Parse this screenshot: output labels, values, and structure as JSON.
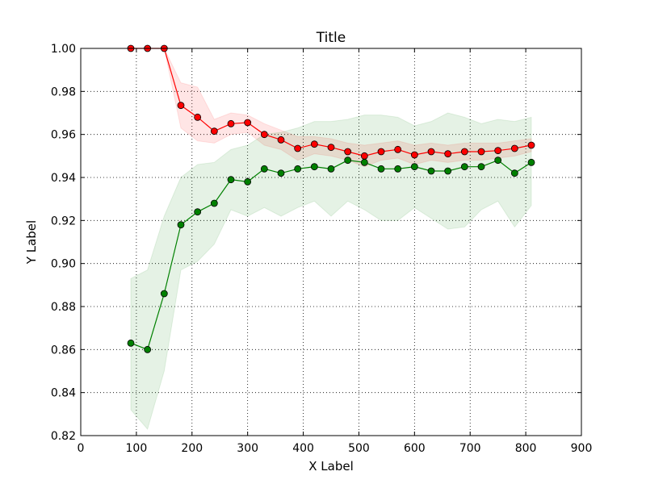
{
  "chart_data": {
    "type": "line",
    "title": "Title",
    "xlabel": "X Label",
    "ylabel": "Y Label",
    "xlim": [
      0,
      900
    ],
    "ylim": [
      0.82,
      1.0
    ],
    "xticks": [
      "0",
      "100",
      "200",
      "300",
      "400",
      "500",
      "600",
      "700",
      "800",
      "900"
    ],
    "yticks": [
      "0.82",
      "0.84",
      "0.86",
      "0.88",
      "0.90",
      "0.92",
      "0.94",
      "0.96",
      "0.98",
      "1.00"
    ],
    "grid": true,
    "x": [
      90,
      120,
      150,
      180,
      210,
      240,
      270,
      300,
      330,
      360,
      390,
      420,
      450,
      480,
      510,
      540,
      570,
      600,
      630,
      660,
      690,
      720,
      750,
      780,
      810
    ],
    "series": [
      {
        "color": "#ff0000",
        "band_color": "#ff0000",
        "values": [
          1.0,
          1.0,
          1.0,
          0.9735,
          0.968,
          0.9615,
          0.965,
          0.9655,
          0.96,
          0.9575,
          0.9535,
          0.9555,
          0.954,
          0.952,
          0.95,
          0.952,
          0.953,
          0.9505,
          0.952,
          0.951,
          0.952,
          0.952,
          0.9525,
          0.9535,
          0.955
        ],
        "upper": [
          1.0,
          1.0,
          1.0,
          0.984,
          0.982,
          0.967,
          0.97,
          0.969,
          0.965,
          0.962,
          0.959,
          0.959,
          0.958,
          0.956,
          0.955,
          0.956,
          0.957,
          0.955,
          0.956,
          0.955,
          0.956,
          0.956,
          0.956,
          0.957,
          0.958
        ],
        "lower": [
          1.0,
          1.0,
          1.0,
          0.963,
          0.957,
          0.956,
          0.96,
          0.961,
          0.955,
          0.953,
          0.948,
          0.951,
          0.95,
          0.948,
          0.945,
          0.948,
          0.949,
          0.946,
          0.948,
          0.947,
          0.948,
          0.948,
          0.949,
          0.95,
          0.952
        ]
      },
      {
        "color": "#008000",
        "band_color": "#008000",
        "values": [
          0.863,
          0.86,
          0.886,
          0.918,
          0.924,
          0.928,
          0.939,
          0.938,
          0.944,
          0.942,
          0.944,
          0.945,
          0.944,
          0.948,
          0.947,
          0.944,
          0.944,
          0.945,
          0.943,
          0.943,
          0.945,
          0.945,
          0.948,
          0.942,
          0.947
        ],
        "upper": [
          0.893,
          0.897,
          0.922,
          0.94,
          0.946,
          0.947,
          0.953,
          0.955,
          0.96,
          0.961,
          0.963,
          0.966,
          0.966,
          0.967,
          0.969,
          0.969,
          0.968,
          0.964,
          0.966,
          0.97,
          0.968,
          0.965,
          0.967,
          0.966,
          0.968
        ],
        "lower": [
          0.832,
          0.823,
          0.85,
          0.897,
          0.901,
          0.909,
          0.925,
          0.922,
          0.926,
          0.922,
          0.926,
          0.929,
          0.922,
          0.929,
          0.925,
          0.92,
          0.92,
          0.926,
          0.921,
          0.916,
          0.917,
          0.925,
          0.929,
          0.917,
          0.927
        ]
      }
    ]
  }
}
